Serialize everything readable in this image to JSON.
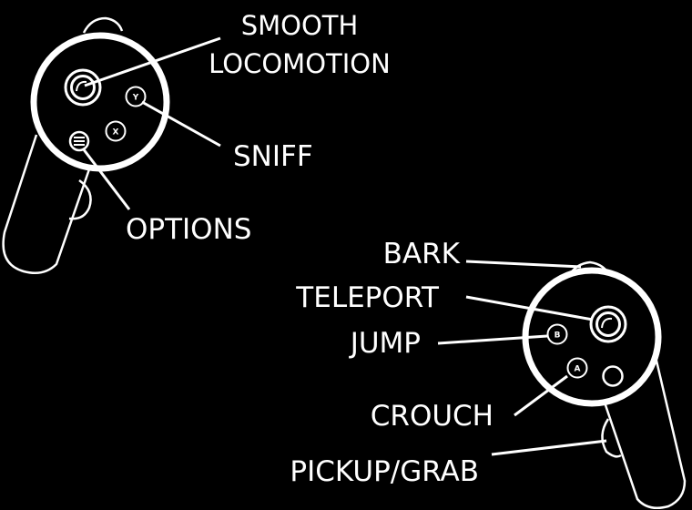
{
  "colors": {
    "background": "#000000",
    "foreground": "#ffffff"
  },
  "left_controller": {
    "buttons": {
      "y": "Y",
      "x": "X"
    },
    "icons": [
      "thumbstick-icon",
      "y-button-icon",
      "x-button-icon",
      "menu-button-icon"
    ],
    "labels": {
      "smooth_locomotion_line1": "SMOOTH",
      "smooth_locomotion_line2": "LOCOMOTION",
      "sniff": "SNIFF",
      "options": "OPTIONS"
    }
  },
  "right_controller": {
    "buttons": {
      "b": "B",
      "a": "A"
    },
    "icons": [
      "thumbstick-icon",
      "b-button-icon",
      "a-button-icon",
      "oculus-button-icon"
    ],
    "labels": {
      "bark": "BARK",
      "teleport": "TELEPORT",
      "jump": "JUMP",
      "crouch": "CROUCH",
      "pickup_grab": "PICKUP/GRAB"
    }
  }
}
